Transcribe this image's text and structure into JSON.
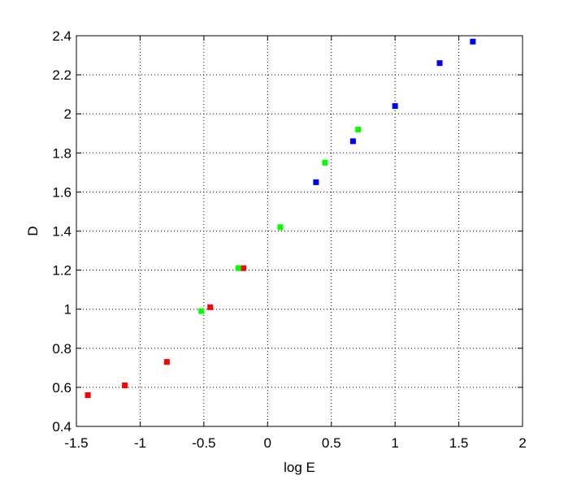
{
  "chart_data": {
    "type": "scatter",
    "title": "",
    "xlabel": "log E",
    "ylabel": "D",
    "xlim": [
      -1.5,
      2
    ],
    "ylim": [
      0.4,
      2.4
    ],
    "xticks": [
      "-1.5",
      "-1",
      "-0.5",
      "0",
      "0.5",
      "1",
      "1.5",
      "2"
    ],
    "yticks": [
      "0.4",
      "0.6",
      "0.8",
      "1",
      "1.2",
      "1.4",
      "1.6",
      "1.8",
      "2",
      "2.2",
      "2.4"
    ],
    "grid": true,
    "series": [
      {
        "color": "#ff0000",
        "x": [
          -1.41,
          -1.12,
          -0.79,
          -0.45,
          -0.19
        ],
        "y": [
          0.56,
          0.61,
          0.73,
          1.01,
          1.21
        ]
      },
      {
        "color": "#00ff00",
        "x": [
          -0.52,
          -0.23,
          0.1,
          0.45,
          0.71
        ],
        "y": [
          0.99,
          1.21,
          1.42,
          1.75,
          1.92
        ]
      },
      {
        "color": "#0000ff",
        "x": [
          0.38,
          0.67,
          1.0,
          1.35,
          1.61
        ],
        "y": [
          1.65,
          1.86,
          2.04,
          2.26,
          2.37
        ]
      }
    ]
  }
}
